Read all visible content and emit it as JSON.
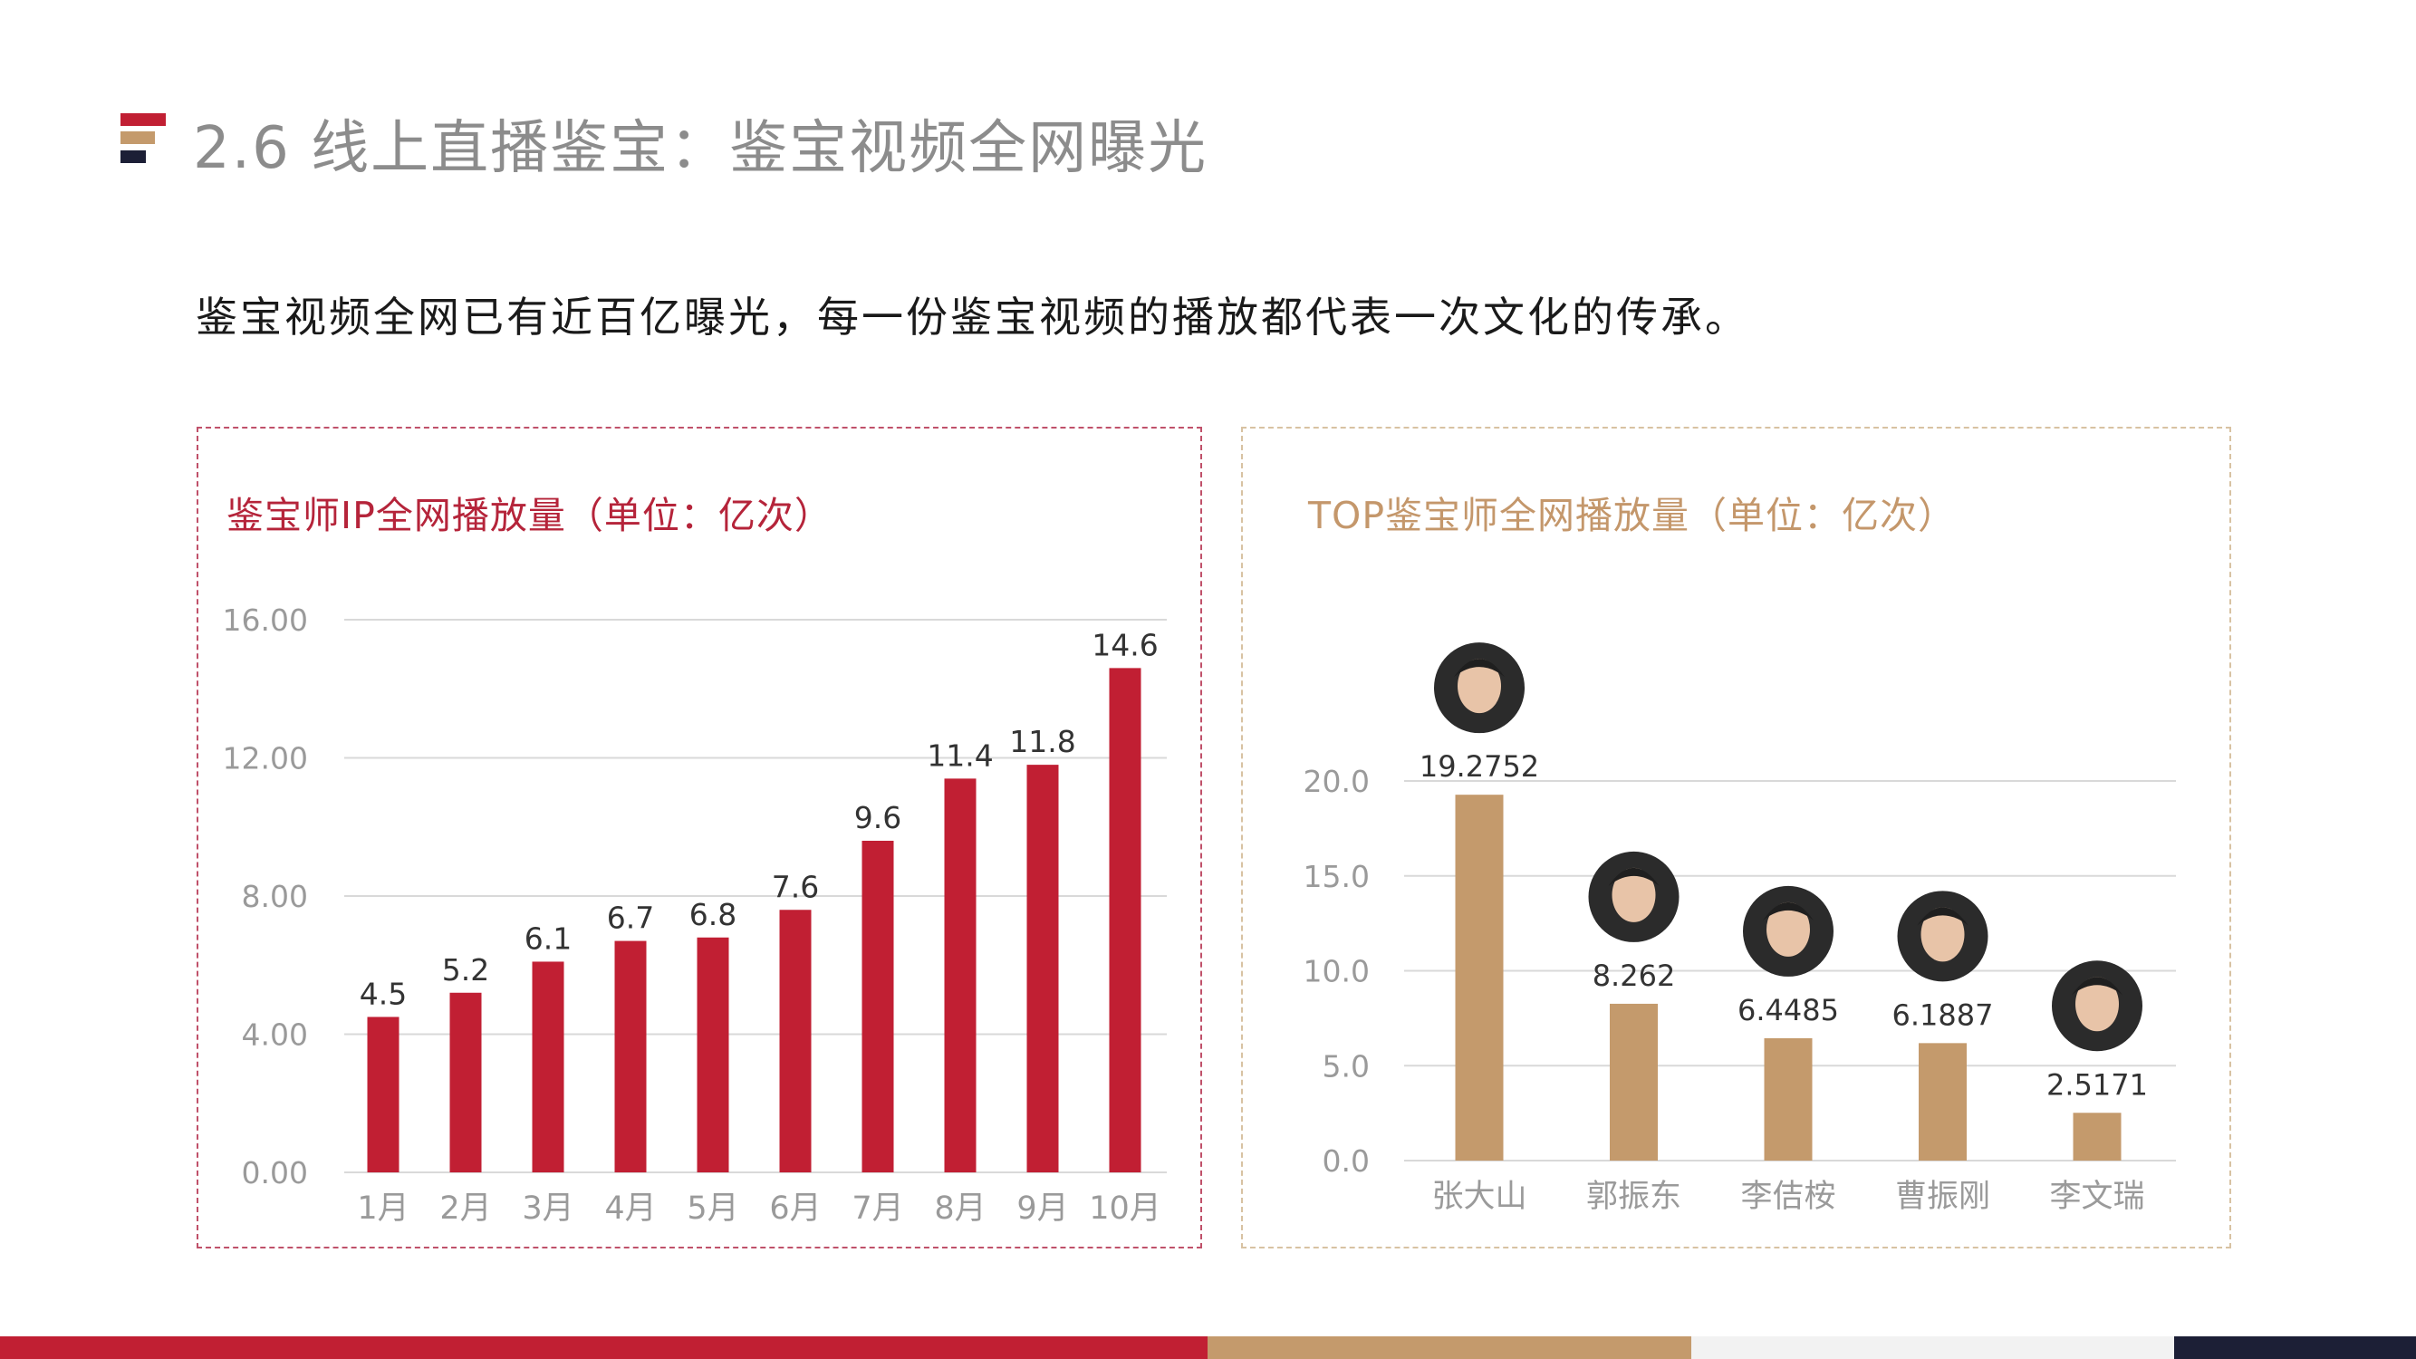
{
  "header": {
    "title": "2.6 线上直播鉴宝：鉴宝视频全网曝光",
    "subtitle": "鉴宝视频全网已有近百亿曝光，每一份鉴宝视频的播放都代表一次文化的传承。"
  },
  "colors": {
    "red": "#c11f33",
    "tan": "#c49a6c",
    "light_gray": "#f2f2f2",
    "navy": "#1c1f36",
    "grid": "#d9d9d9",
    "axis_text": "#9a9a9a",
    "label_text": "#333333"
  },
  "chart_data": [
    {
      "type": "bar",
      "title": "鉴宝师IP全网播放量（单位：亿次）",
      "categories": [
        "1月",
        "2月",
        "3月",
        "4月",
        "5月",
        "6月",
        "7月",
        "8月",
        "9月",
        "10月"
      ],
      "values": [
        4.5,
        5.2,
        6.1,
        6.7,
        6.8,
        7.6,
        9.6,
        11.4,
        11.8,
        14.6
      ],
      "value_labels": [
        "4.5",
        "5.2",
        "6.1",
        "6.7",
        "6.8",
        "7.6",
        "9.6",
        "11.4",
        "11.8",
        "14.6"
      ],
      "ylim": [
        0,
        16
      ],
      "yticks": [
        "0.00",
        "4.00",
        "8.00",
        "12.00",
        "16.00"
      ],
      "ytick_values": [
        0,
        4,
        8,
        12,
        16
      ],
      "grid": true,
      "color": "#c11f33"
    },
    {
      "type": "bar",
      "title": "TOP鉴宝师全网播放量（单位：亿次）",
      "categories": [
        "张大山",
        "郭振东",
        "李佶桉",
        "曹振刚",
        "李文瑞"
      ],
      "values": [
        19.2752,
        8.262,
        6.4485,
        6.1887,
        2.5171
      ],
      "value_labels": [
        "19.2752",
        "8.262",
        "6.4485",
        "6.1887",
        "2.5171"
      ],
      "ylim": [
        0,
        20
      ],
      "yticks": [
        "0.0",
        "5.0",
        "10.0",
        "15.0",
        "20.0"
      ],
      "ytick_values": [
        0,
        5,
        10,
        15,
        20
      ],
      "grid": true,
      "color": "#c49a6c",
      "avatars": true
    }
  ]
}
